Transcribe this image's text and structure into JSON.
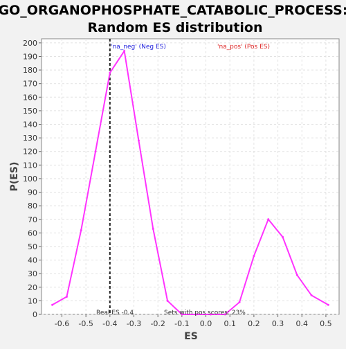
{
  "chart_data": {
    "type": "line",
    "title": [
      "GO_ORGANOPHOSPHATE_CATABOLIC_PROCESS:",
      "Random ES distribution"
    ],
    "xlabel": "ES",
    "ylabel": "P(ES)",
    "xlim": [
      -0.685,
      0.555
    ],
    "ylim": [
      0,
      203
    ],
    "xticks": [
      -0.6,
      -0.5,
      -0.4,
      -0.3,
      -0.2,
      -0.1,
      0.0,
      0.1,
      0.2,
      0.3,
      0.4,
      0.5
    ],
    "yticks": [
      0,
      10,
      20,
      30,
      40,
      50,
      60,
      70,
      80,
      90,
      100,
      110,
      120,
      130,
      140,
      150,
      160,
      170,
      180,
      190,
      200
    ],
    "grid": true,
    "series": [
      {
        "color": "#ff33ff",
        "x": [
          -0.64,
          -0.58,
          -0.52,
          -0.46,
          -0.4,
          -0.34,
          -0.28,
          -0.22,
          -0.16,
          -0.1,
          -0.04,
          0.02,
          0.08,
          0.14,
          0.2,
          0.26,
          0.32,
          0.38,
          0.44,
          0.51
        ],
        "y": [
          7,
          13,
          62,
          120,
          178,
          194,
          128,
          63,
          10,
          0,
          0,
          0,
          0,
          9,
          43,
          70,
          57,
          29,
          14,
          7
        ]
      }
    ],
    "real_es": -0.4,
    "annotations": {
      "neg": "'na_neg' (Neg ES)",
      "pos": "'na_pos' (Pos ES)",
      "real_es": "Real ES -0.4",
      "pos_sets": "Sets with pos scores: 23%"
    }
  }
}
